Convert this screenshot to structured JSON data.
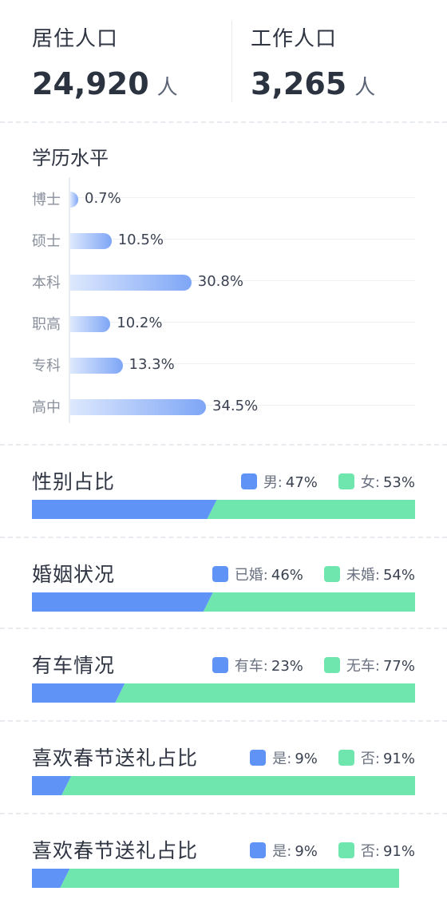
{
  "stats": {
    "resident": {
      "label": "居住人口",
      "value": "24,920",
      "unit": "人"
    },
    "work": {
      "label": "工作人口",
      "value": "3,265",
      "unit": "人"
    }
  },
  "education": {
    "title": "学历水平",
    "chart_data": {
      "type": "bar",
      "orientation": "horizontal",
      "categories": [
        "博士",
        "硕士",
        "本科",
        "职高",
        "专科",
        "高中"
      ],
      "values": [
        0.7,
        10.5,
        30.8,
        10.2,
        13.3,
        34.5
      ],
      "value_labels": [
        "0.7%",
        "10.5%",
        "30.8%",
        "10.2%",
        "13.3%",
        "34.5%"
      ],
      "unit": "%",
      "grid": true
    }
  },
  "sections": [
    {
      "title": "性别占比",
      "a_label": "男:",
      "a_value": "47%",
      "b_label": "女:",
      "b_value": "53%",
      "a_pct": 47
    },
    {
      "title": "婚姻状况",
      "a_label": "已婚:",
      "a_value": "46%",
      "b_label": "未婚:",
      "b_value": "54%",
      "a_pct": 46
    },
    {
      "title": "有车情况",
      "a_label": "有车:",
      "a_value": "23%",
      "b_label": "无车:",
      "b_value": "77%",
      "a_pct": 23
    },
    {
      "title": "喜欢春节送礼占比",
      "a_label": "是:",
      "a_value": "9%",
      "b_label": "否:",
      "b_value": "91%",
      "a_pct": 9
    },
    {
      "title": "喜欢春节送礼占比",
      "a_label": "是:",
      "a_value": "9%",
      "b_label": "否:",
      "b_value": "91%",
      "a_pct": 9
    }
  ],
  "colors": {
    "primary": "#5f94f6",
    "secondary": "#6fe6ad",
    "bar_gradient_start": "#dde8fd",
    "bar_gradient_end": "#7ea6f6"
  }
}
